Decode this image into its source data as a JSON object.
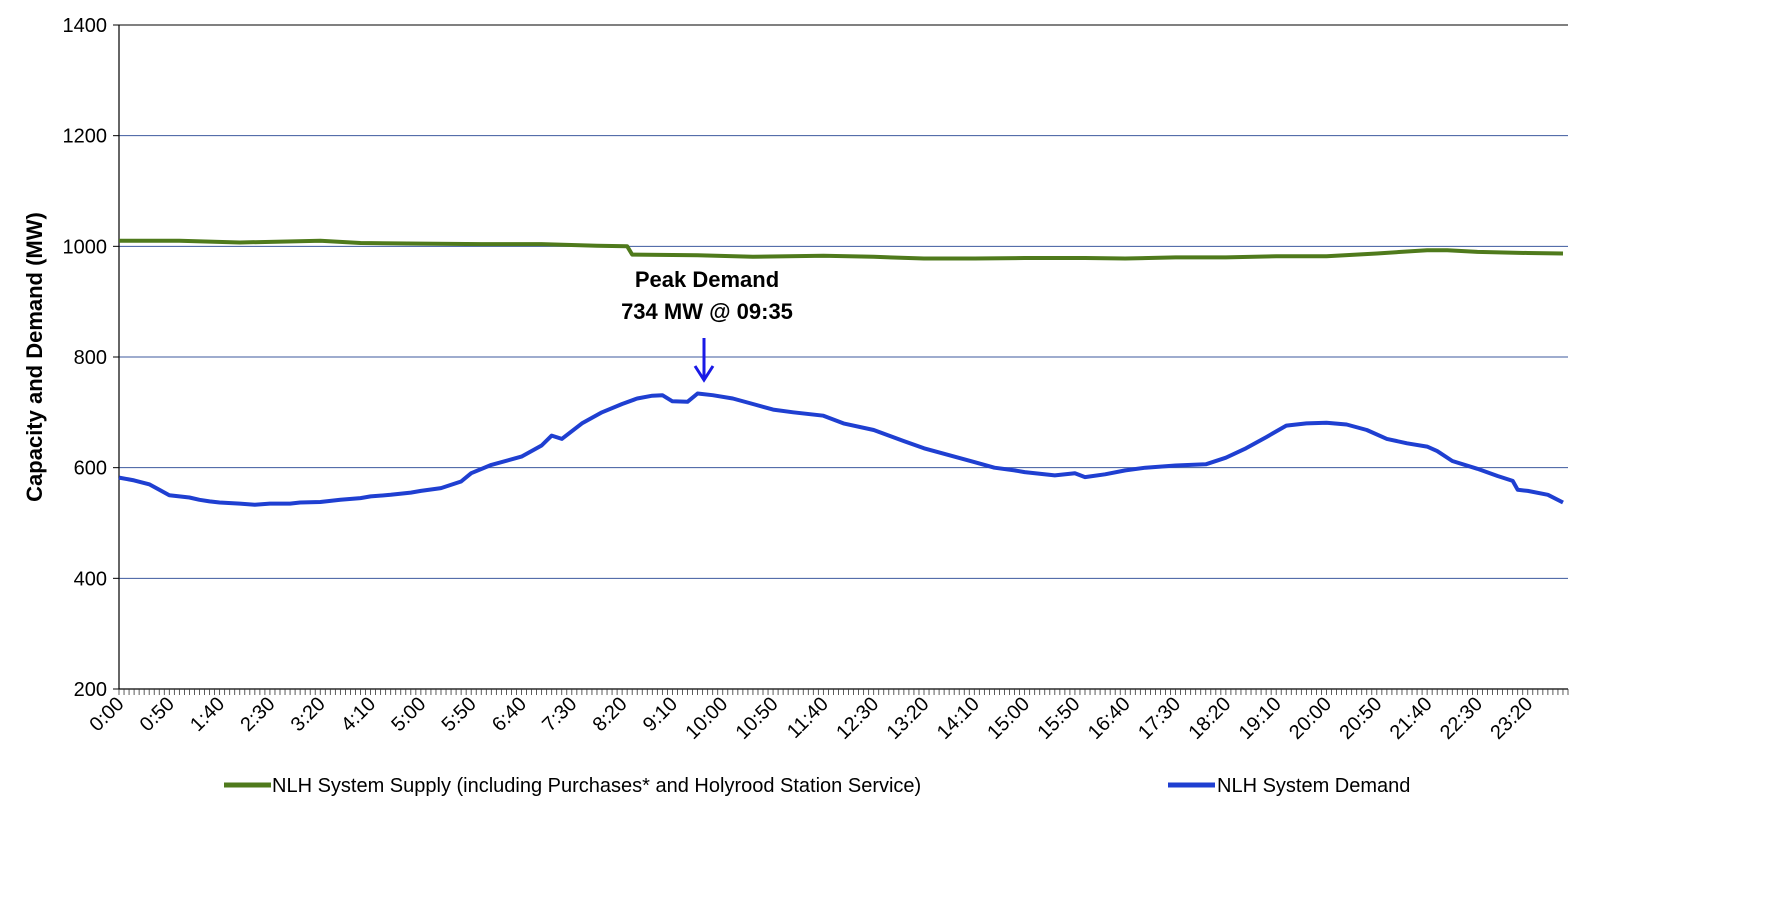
{
  "chart_data": {
    "type": "line",
    "title": "",
    "xlabel": "",
    "ylabel": "Capacity and Demand (MW)",
    "ylim": [
      200,
      1400
    ],
    "y_ticks": [
      200,
      400,
      600,
      800,
      1000,
      1200,
      1400
    ],
    "x_interval_minutes": 5,
    "x_tick_labels": [
      "0:00",
      "0:50",
      "1:40",
      "2:30",
      "3:20",
      "4:10",
      "5:00",
      "5:50",
      "6:40",
      "7:30",
      "8:20",
      "9:10",
      "10:00",
      "10:50",
      "11:40",
      "12:30",
      "13:20",
      "14:10",
      "15:00",
      "15:50",
      "16:40",
      "17:30",
      "18:20",
      "19:10",
      "20:00",
      "20:50",
      "21:40",
      "22:30",
      "23:20"
    ],
    "grid": true,
    "legend_position": "bottom",
    "colors": {
      "supply": "#4f7a1c",
      "demand": "#1f3fd1",
      "grid": "#3d5a9e",
      "arrow": "#1a1ae6"
    },
    "series": [
      {
        "name": "NLH System Supply (including Purchases* and Holyrood Station Service)",
        "key": "supply",
        "points": [
          [
            "0:00",
            1010
          ],
          [
            "1:00",
            1010
          ],
          [
            "2:00",
            1007
          ],
          [
            "3:20",
            1010
          ],
          [
            "4:00",
            1006
          ],
          [
            "5:00",
            1005
          ],
          [
            "6:00",
            1004
          ],
          [
            "7:00",
            1004
          ],
          [
            "7:55",
            1001
          ],
          [
            "8:25",
            1000
          ],
          [
            "8:30",
            985
          ],
          [
            "9:35",
            984
          ],
          [
            "10:30",
            981
          ],
          [
            "11:40",
            983
          ],
          [
            "12:30",
            981
          ],
          [
            "13:20",
            978
          ],
          [
            "14:10",
            978
          ],
          [
            "15:00",
            979
          ],
          [
            "16:00",
            979
          ],
          [
            "16:40",
            978
          ],
          [
            "17:30",
            980
          ],
          [
            "18:20",
            980
          ],
          [
            "19:10",
            982
          ],
          [
            "20:00",
            982
          ],
          [
            "20:50",
            987
          ],
          [
            "21:40",
            993
          ],
          [
            "22:00",
            993
          ],
          [
            "22:30",
            990
          ],
          [
            "23:20",
            988
          ],
          [
            "23:55",
            987
          ]
        ]
      },
      {
        "name": "NLH System Demand",
        "key": "demand",
        "points": [
          [
            "0:00",
            582
          ],
          [
            "0:15",
            577
          ],
          [
            "0:30",
            570
          ],
          [
            "0:40",
            560
          ],
          [
            "0:50",
            550
          ],
          [
            "1:00",
            548
          ],
          [
            "1:10",
            546
          ],
          [
            "1:20",
            542
          ],
          [
            "1:30",
            539
          ],
          [
            "1:40",
            537
          ],
          [
            "2:00",
            535
          ],
          [
            "2:15",
            533
          ],
          [
            "2:30",
            535
          ],
          [
            "2:50",
            535
          ],
          [
            "3:00",
            537
          ],
          [
            "3:20",
            538
          ],
          [
            "3:40",
            542
          ],
          [
            "4:00",
            545
          ],
          [
            "4:10",
            548
          ],
          [
            "4:30",
            551
          ],
          [
            "4:50",
            555
          ],
          [
            "5:00",
            558
          ],
          [
            "5:20",
            563
          ],
          [
            "5:40",
            575
          ],
          [
            "5:50",
            590
          ],
          [
            "6:10",
            605
          ],
          [
            "6:40",
            620
          ],
          [
            "7:00",
            640
          ],
          [
            "7:10",
            658
          ],
          [
            "7:20",
            652
          ],
          [
            "7:40",
            680
          ],
          [
            "8:00",
            700
          ],
          [
            "8:20",
            715
          ],
          [
            "8:35",
            725
          ],
          [
            "8:50",
            730
          ],
          [
            "9:00",
            731
          ],
          [
            "9:10",
            720
          ],
          [
            "9:25",
            719
          ],
          [
            "9:35",
            734
          ],
          [
            "9:50",
            731
          ],
          [
            "10:10",
            725
          ],
          [
            "10:30",
            715
          ],
          [
            "10:50",
            705
          ],
          [
            "11:10",
            700
          ],
          [
            "11:40",
            694
          ],
          [
            "12:00",
            680
          ],
          [
            "12:30",
            668
          ],
          [
            "13:00",
            648
          ],
          [
            "13:20",
            635
          ],
          [
            "13:50",
            620
          ],
          [
            "14:10",
            610
          ],
          [
            "14:30",
            600
          ],
          [
            "14:50",
            595
          ],
          [
            "15:00",
            592
          ],
          [
            "15:30",
            586
          ],
          [
            "15:50",
            590
          ],
          [
            "16:00",
            583
          ],
          [
            "16:20",
            588
          ],
          [
            "16:40",
            595
          ],
          [
            "17:00",
            600
          ],
          [
            "17:30",
            604
          ],
          [
            "18:00",
            606
          ],
          [
            "18:20",
            618
          ],
          [
            "18:40",
            635
          ],
          [
            "19:00",
            655
          ],
          [
            "19:20",
            676
          ],
          [
            "19:40",
            680
          ],
          [
            "20:00",
            681
          ],
          [
            "20:20",
            678
          ],
          [
            "20:40",
            668
          ],
          [
            "21:00",
            652
          ],
          [
            "21:20",
            644
          ],
          [
            "21:40",
            638
          ],
          [
            "21:50",
            630
          ],
          [
            "22:05",
            612
          ],
          [
            "22:30",
            598
          ],
          [
            "22:50",
            585
          ],
          [
            "23:05",
            576
          ],
          [
            "23:10",
            560
          ],
          [
            "23:20",
            558
          ],
          [
            "23:40",
            551
          ],
          [
            "23:55",
            537
          ]
        ]
      }
    ],
    "annotations": [
      {
        "line1": "Peak Demand",
        "line2": "734 MW @ 09:35",
        "time": "9:35",
        "value": 734
      }
    ]
  }
}
